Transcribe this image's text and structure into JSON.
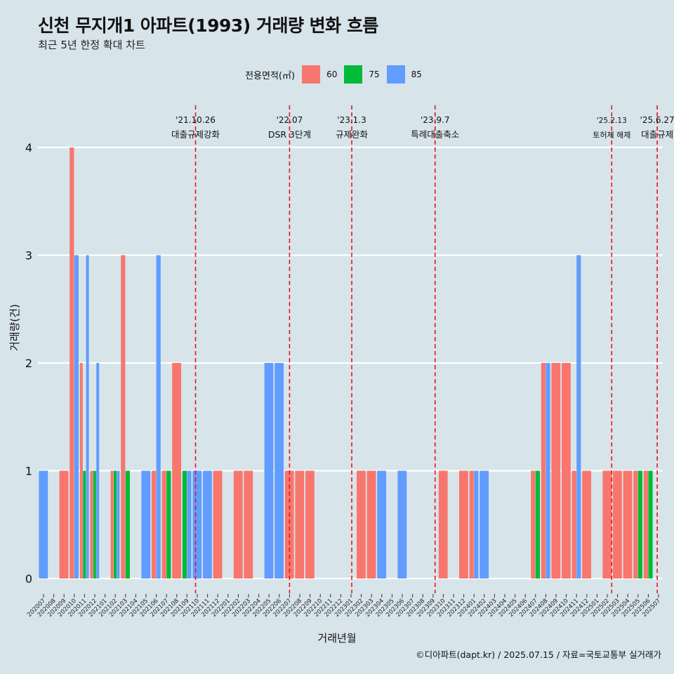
{
  "header": {
    "title": "신천 무지개1 아파트(1993) 거래량 변화 흐름",
    "subtitle": "최근 5년 한정 확대 차트"
  },
  "legend": {
    "title": "전용면적(㎡)",
    "items": [
      {
        "label": "60",
        "color": "#f8766d"
      },
      {
        "label": "75",
        "color": "#00ba38"
      },
      {
        "label": "85",
        "color": "#619cff"
      }
    ]
  },
  "caption": "©디아파트(dapt.kr) / 2025.07.15 / 자료=국토교통부 실거래가",
  "chart_data": {
    "type": "bar",
    "xlabel": "거래년월",
    "ylabel": "거래량(건)",
    "ylim": [
      0,
      4
    ],
    "yticks": [
      0,
      1,
      2,
      3,
      4
    ],
    "grid": true,
    "legend_position": "top",
    "categories": [
      "202007",
      "202008",
      "202009",
      "202010",
      "202011",
      "202012",
      "202101",
      "202102",
      "202103",
      "202104",
      "202105",
      "202106",
      "202107",
      "202108",
      "202109",
      "202110",
      "202111",
      "202112",
      "202201",
      "202202",
      "202203",
      "202204",
      "202205",
      "202206",
      "202207",
      "202208",
      "202209",
      "202210",
      "202211",
      "202212",
      "202301",
      "202302",
      "202303",
      "202304",
      "202305",
      "202306",
      "202307",
      "202308",
      "202309",
      "202310",
      "202311",
      "202312",
      "202401",
      "202402",
      "202403",
      "202404",
      "202405",
      "202406",
      "202407",
      "202408",
      "202409",
      "202410",
      "202411",
      "202412",
      "202501",
      "202502",
      "202503",
      "202504",
      "202505",
      "202506",
      "202507"
    ],
    "series": [
      {
        "name": "60",
        "color": "#f8766d",
        "values": [
          0,
          0,
          1,
          4,
          2,
          1,
          0,
          1,
          3,
          0,
          0,
          1,
          1,
          2,
          0,
          0,
          0,
          1,
          0,
          1,
          1,
          0,
          0,
          0,
          1,
          1,
          1,
          0,
          0,
          0,
          0,
          1,
          1,
          0,
          0,
          0,
          0,
          0,
          0,
          1,
          0,
          1,
          1,
          0,
          0,
          0,
          0,
          0,
          1,
          2,
          2,
          2,
          1,
          1,
          0,
          1,
          1,
          1,
          1,
          1,
          0
        ]
      },
      {
        "name": "75",
        "color": "#00ba38",
        "values": [
          0,
          0,
          0,
          0,
          1,
          1,
          0,
          1,
          1,
          0,
          0,
          0,
          1,
          0,
          1,
          0,
          0,
          0,
          0,
          0,
          0,
          0,
          0,
          0,
          0,
          0,
          0,
          0,
          0,
          0,
          0,
          0,
          0,
          0,
          0,
          0,
          0,
          0,
          0,
          0,
          0,
          0,
          0,
          0,
          0,
          0,
          0,
          0,
          1,
          0,
          0,
          0,
          0,
          0,
          0,
          0,
          0,
          0,
          1,
          1,
          0
        ]
      },
      {
        "name": "85",
        "color": "#619cff",
        "values": [
          1,
          0,
          0,
          3,
          3,
          2,
          0,
          1,
          0,
          0,
          1,
          3,
          0,
          0,
          1,
          1,
          1,
          0,
          0,
          0,
          0,
          0,
          2,
          2,
          0,
          0,
          0,
          0,
          0,
          0,
          0,
          0,
          0,
          1,
          0,
          1,
          0,
          0,
          0,
          0,
          0,
          0,
          1,
          1,
          0,
          0,
          0,
          0,
          0,
          2,
          0,
          0,
          3,
          0,
          0,
          0,
          0,
          0,
          0,
          0,
          0
        ]
      }
    ],
    "annotations": [
      {
        "date": "'21.10.26",
        "label": "대출규제강화",
        "index": 14.83
      },
      {
        "date": "'22.07",
        "label": "DSR 3단계",
        "index": 24.0
      },
      {
        "date": "'23.1.3",
        "label": "규제완화",
        "index": 30.07
      },
      {
        "date": "'23.9.7",
        "label": "특례대출축소",
        "index": 38.2
      },
      {
        "date": "'25.2.13",
        "label": "토허제 해제",
        "index": 55.43
      },
      {
        "date": "'25.6.27",
        "label": "대출규제",
        "index": 59.87
      }
    ]
  }
}
